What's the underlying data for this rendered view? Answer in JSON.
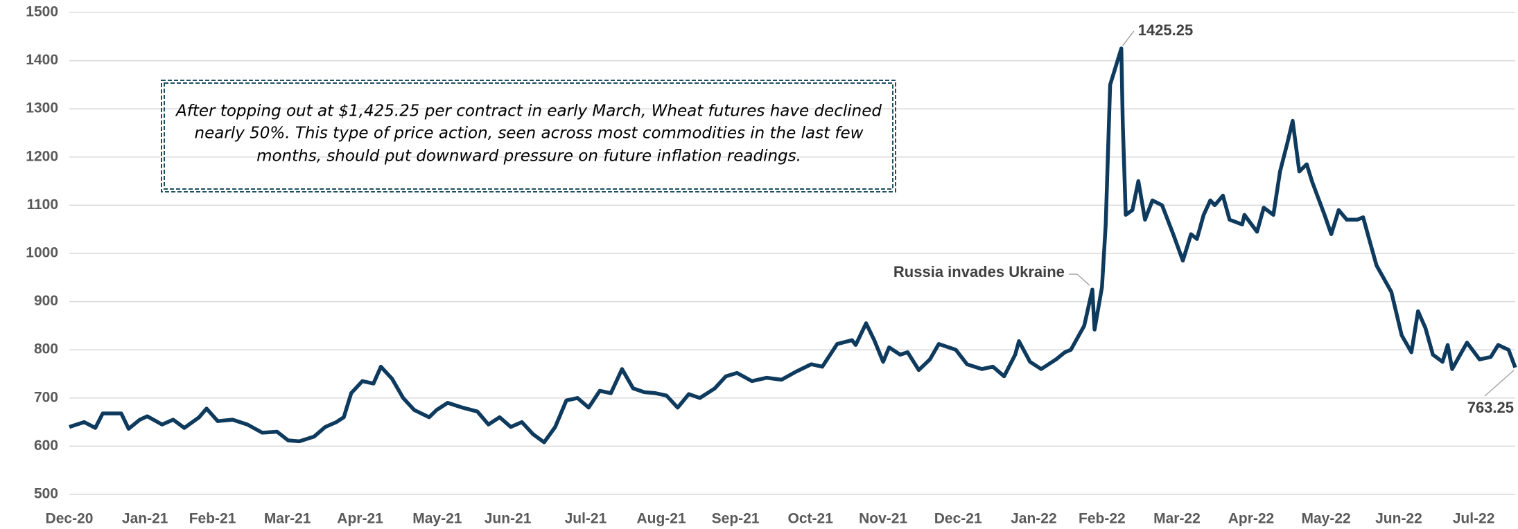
{
  "chart_data": {
    "type": "line",
    "note": [
      "After topping out at $1,425.25  per contract in early March, Wheat futures have declined",
      "nearly 50%. This type of price action, seen across most commodities in the last few",
      "months, should put downward pressure on future inflation readings."
    ],
    "annotations": [
      "1425.25",
      "Russia invades Ukraine",
      "763.25"
    ],
    "x": [
      0,
      0.2,
      0.35,
      0.45,
      0.7,
      0.8,
      0.95,
      1.05,
      1.25,
      1.4,
      1.55,
      1.75,
      1.85,
      2.0,
      2.2,
      2.4,
      2.6,
      2.8,
      2.95,
      3.1,
      3.3,
      3.45,
      3.6,
      3.7,
      3.8,
      3.95,
      4.1,
      4.2,
      4.35,
      4.5,
      4.65,
      4.85,
      4.95,
      5.1,
      5.3,
      5.5,
      5.65,
      5.8,
      5.95,
      6.1,
      6.25,
      6.4,
      6.55,
      6.7,
      6.85,
      7.0,
      7.15,
      7.3,
      7.45,
      7.6,
      7.75,
      7.9,
      8.05,
      8.2,
      8.35,
      8.5,
      8.7,
      8.85,
      9.0,
      9.2,
      9.4,
      9.6,
      9.8,
      10.0,
      10.15,
      10.35,
      10.55,
      10.6,
      10.74,
      10.85,
      10.97,
      11.05,
      11.2,
      11.3,
      11.45,
      11.6,
      11.72,
      11.95,
      12.1,
      12.3,
      12.45,
      12.6,
      12.75,
      12.8,
      12.95,
      13.1,
      13.3,
      13.42,
      13.5,
      13.68,
      13.79,
      13.82,
      13.92,
      13.97,
      14.03,
      14.18,
      14.2,
      14.24,
      14.33,
      14.41,
      14.5,
      14.6,
      14.73,
      14.88,
      15.01,
      15.12,
      15.2,
      15.29,
      15.38,
      15.44,
      15.55,
      15.64,
      15.81,
      15.84,
      16.01,
      16.1,
      16.23,
      16.32,
      16.42,
      16.49,
      16.58,
      16.68,
      16.75,
      16.92,
      17.01,
      17.11,
      17.22,
      17.36,
      17.44,
      17.52,
      17.62,
      17.82,
      17.96,
      18.09,
      18.18,
      18.28,
      18.38,
      18.51,
      18.58,
      18.64,
      18.84,
      19.01,
      19.16,
      19.26,
      19.4,
      19.49
    ],
    "series": [
      {
        "color": "#0e3a5e",
        "values": [
          640,
          650,
          638,
          668,
          668,
          636,
          655,
          662,
          645,
          655,
          638,
          660,
          678,
          652,
          655,
          645,
          628,
          630,
          612,
          610,
          620,
          640,
          650,
          660,
          710,
          735,
          730,
          765,
          740,
          700,
          675,
          660,
          675,
          690,
          680,
          672,
          645,
          660,
          640,
          650,
          625,
          608,
          640,
          695,
          700,
          680,
          715,
          710,
          760,
          720,
          712,
          710,
          705,
          680,
          708,
          700,
          720,
          745,
          752,
          735,
          742,
          738,
          755,
          770,
          765,
          812,
          820,
          810,
          855,
          820,
          775,
          805,
          790,
          795,
          758,
          780,
          812,
          800,
          770,
          760,
          765,
          745,
          790,
          818,
          775,
          760,
          780,
          795,
          800,
          850,
          925,
          842,
          930,
          1060,
          1350,
          1425.25,
          1270,
          1080,
          1090,
          1150,
          1070,
          1110,
          1100,
          1040,
          985,
          1040,
          1030,
          1080,
          1110,
          1100,
          1120,
          1070,
          1060,
          1080,
          1045,
          1095,
          1080,
          1170,
          1230,
          1275,
          1170,
          1185,
          1150,
          1080,
          1040,
          1090,
          1070,
          1070,
          1075,
          1030,
          975,
          920,
          830,
          795,
          880,
          845,
          790,
          775,
          810,
          760,
          815,
          780,
          785,
          810,
          800,
          763.25
        ]
      }
    ],
    "xlim": [
      0,
      19.49
    ],
    "xticks": [
      {
        "value": 0,
        "label": "Dec-20"
      },
      {
        "value": 1.02,
        "label": "Jan-21"
      },
      {
        "value": 1.93,
        "label": "Feb-21"
      },
      {
        "value": 2.94,
        "label": "Mar-21"
      },
      {
        "value": 3.92,
        "label": "Apr-21"
      },
      {
        "value": 4.96,
        "label": "May-21"
      },
      {
        "value": 5.91,
        "label": "Jun-21"
      },
      {
        "value": 6.96,
        "label": "Jul-21"
      },
      {
        "value": 7.98,
        "label": "Aug-21"
      },
      {
        "value": 8.98,
        "label": "Sep-21"
      },
      {
        "value": 9.99,
        "label": "Oct-21"
      },
      {
        "value": 10.97,
        "label": "Nov-21"
      },
      {
        "value": 11.98,
        "label": "Dec-21"
      },
      {
        "value": 13.0,
        "label": "Jan-22"
      },
      {
        "value": 13.92,
        "label": "Feb-22"
      },
      {
        "value": 14.93,
        "label": "Mar-22"
      },
      {
        "value": 15.93,
        "label": "Apr-22"
      },
      {
        "value": 16.94,
        "label": "May-22"
      },
      {
        "value": 17.92,
        "label": "Jun-22"
      },
      {
        "value": 18.93,
        "label": "Jul-22"
      }
    ],
    "ylim": [
      500,
      1500
    ],
    "yticks": [
      500,
      600,
      700,
      800,
      900,
      1000,
      1100,
      1200,
      1300,
      1400,
      1500
    ],
    "grid": true
  }
}
